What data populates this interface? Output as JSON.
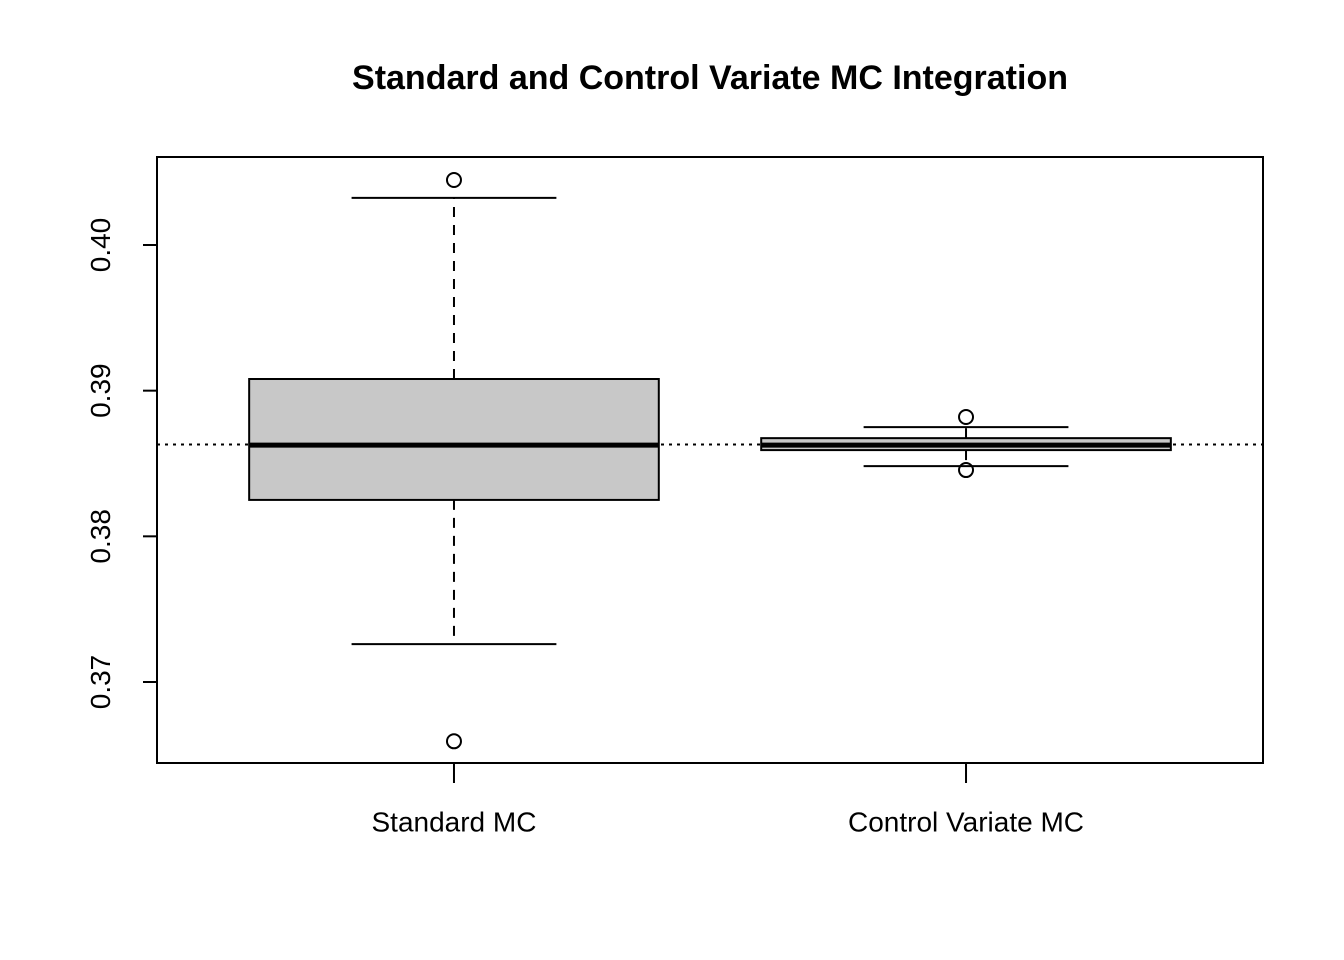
{
  "chart_data": {
    "type": "box",
    "title": "Standard and Control Variate MC Integration",
    "categories": [
      "Standard MC",
      "Control Variate MC"
    ],
    "boxes": [
      {
        "low": 0.3726,
        "q1": 0.3825,
        "median": 0.38626,
        "q3": 0.3908,
        "high": 0.40323,
        "outliers": [
          0.40446,
          0.36593
        ]
      },
      {
        "low": 0.38482,
        "q1": 0.38592,
        "median": 0.38626,
        "q3": 0.38674,
        "high": 0.3875,
        "outliers": [
          0.38819,
          0.38455
        ]
      }
    ],
    "color": "#c8c8c8",
    "hline": 0.3863,
    "ylim": [
      0.36444,
      0.40604
    ],
    "yticks": [
      0.37,
      0.38,
      0.39,
      {
        "value": 0.4,
        "label": "0.40"
      }
    ]
  }
}
